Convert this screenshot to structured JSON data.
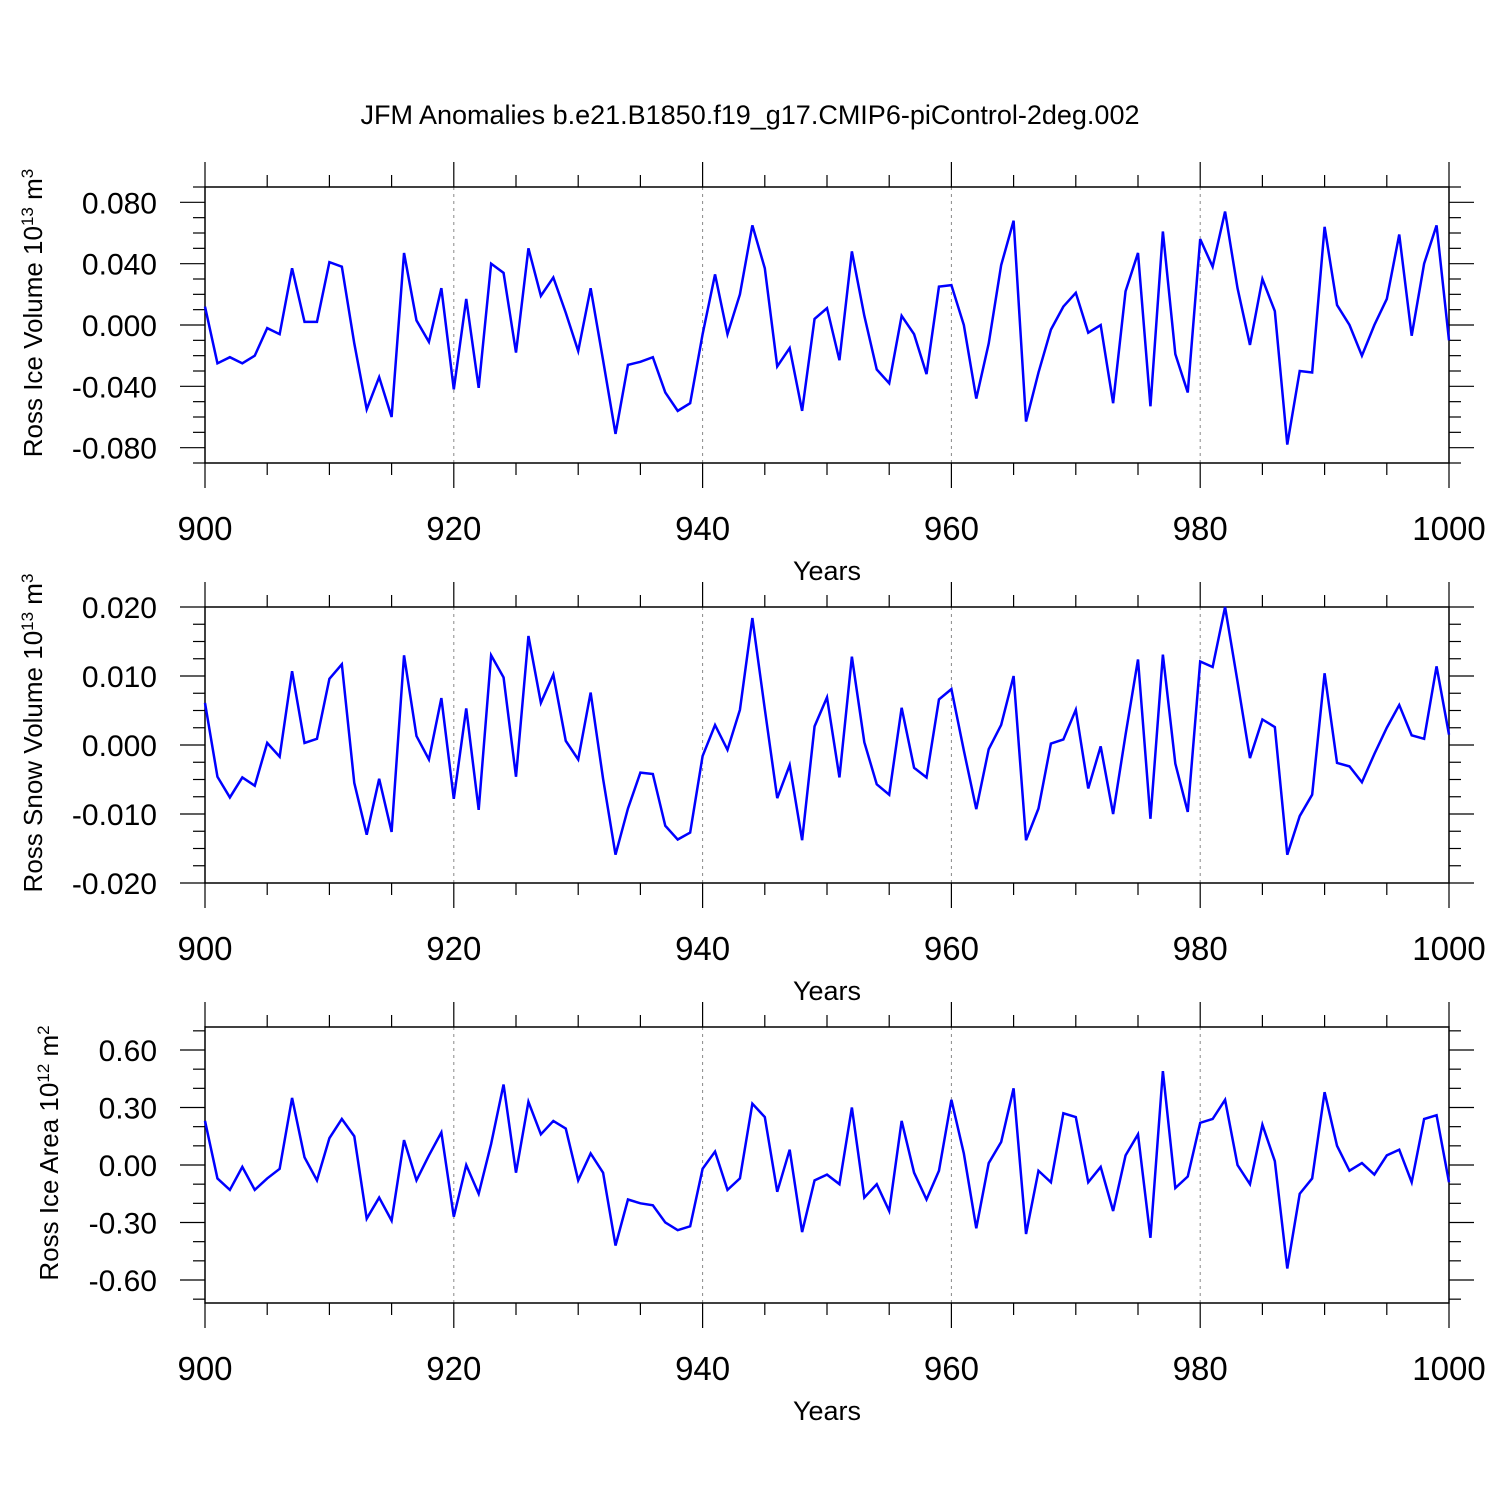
{
  "figure": {
    "title": "JFM Anomalies b.e21.B1850.f19_g17.CMIP6-piControl-2deg.002"
  },
  "colors": {
    "line": "#0000ff",
    "axis": "#000000",
    "grid": "#888888"
  },
  "chart_data": [
    {
      "type": "line",
      "name": "ross-ice-volume",
      "ylabel_main": "Ross Ice Volume 10",
      "ylabel_exp": "13",
      "ylabel_unit": " m",
      "ylabel_unit_exp": "3",
      "xlabel": "Years",
      "xlim": [
        900,
        1000
      ],
      "ylim": [
        -0.09,
        0.09
      ],
      "x_ticks": [
        900,
        920,
        940,
        960,
        980,
        1000
      ],
      "x_tick_labels": [
        "900",
        "920",
        "940",
        "960",
        "980",
        "1000"
      ],
      "y_ticks": [
        -0.08,
        -0.04,
        0.0,
        0.04,
        0.08
      ],
      "y_tick_labels": [
        "-0.080",
        "-0.040",
        "0.000",
        "0.040",
        "0.080"
      ],
      "y_minor_step": 0.01,
      "grid_x": [
        920,
        940,
        960,
        980
      ],
      "x_start": 900,
      "values": [
        0.012,
        -0.025,
        -0.021,
        -0.025,
        -0.02,
        -0.002,
        -0.006,
        0.037,
        0.002,
        0.002,
        0.041,
        0.038,
        -0.012,
        -0.055,
        -0.034,
        -0.06,
        0.047,
        0.003,
        -0.011,
        0.024,
        -0.042,
        0.017,
        -0.041,
        0.04,
        0.034,
        -0.018,
        0.05,
        0.019,
        0.031,
        0.008,
        -0.017,
        0.024,
        -0.023,
        -0.071,
        -0.026,
        -0.024,
        -0.021,
        -0.044,
        -0.056,
        -0.051,
        -0.006,
        0.033,
        -0.006,
        0.02,
        0.065,
        0.037,
        -0.027,
        -0.015,
        -0.056,
        0.004,
        0.011,
        -0.023,
        0.048,
        0.006,
        -0.029,
        -0.038,
        0.006,
        -0.006,
        -0.032,
        0.025,
        0.026,
        0.0,
        -0.048,
        -0.012,
        0.039,
        0.068,
        -0.063,
        -0.031,
        -0.003,
        0.012,
        0.021,
        -0.005,
        0.0,
        -0.051,
        0.022,
        0.047,
        -0.053,
        0.061,
        -0.019,
        -0.044,
        0.056,
        0.038,
        0.074,
        0.024,
        -0.013,
        0.03,
        0.009,
        -0.078,
        -0.03,
        -0.031,
        0.064,
        0.013,
        0.0,
        -0.02,
        0.0,
        0.017,
        0.059,
        -0.007,
        0.04,
        0.065,
        -0.01
      ]
    },
    {
      "type": "line",
      "name": "ross-snow-volume",
      "ylabel_main": "Ross Snow Volume 10",
      "ylabel_exp": "13",
      "ylabel_unit": " m",
      "ylabel_unit_exp": "3",
      "xlabel": "Years",
      "xlim": [
        900,
        1000
      ],
      "ylim": [
        -0.02,
        0.02
      ],
      "x_ticks": [
        900,
        920,
        940,
        960,
        980,
        1000
      ],
      "x_tick_labels": [
        "900",
        "920",
        "940",
        "960",
        "980",
        "1000"
      ],
      "y_ticks": [
        -0.02,
        -0.01,
        0.0,
        0.01,
        0.02
      ],
      "y_tick_labels": [
        "-0.020",
        "-0.010",
        "0.000",
        "0.010",
        "0.020"
      ],
      "y_minor_step": 0.0025,
      "grid_x": [
        920,
        940,
        960,
        980
      ],
      "x_start": 900,
      "values": [
        0.0061,
        -0.0046,
        -0.0076,
        -0.0047,
        -0.0059,
        0.0003,
        -0.0017,
        0.0107,
        0.0003,
        0.0009,
        0.0096,
        0.0117,
        -0.0055,
        -0.013,
        -0.0049,
        -0.0126,
        0.013,
        0.0013,
        -0.0021,
        0.0068,
        -0.0078,
        0.0053,
        -0.0094,
        0.013,
        0.0098,
        -0.0046,
        0.0158,
        0.0061,
        0.0102,
        0.0006,
        -0.0021,
        0.0076,
        -0.0049,
        -0.0159,
        -0.0092,
        -0.004,
        -0.0042,
        -0.0117,
        -0.0137,
        -0.0127,
        -0.0016,
        0.0029,
        -0.0007,
        0.0051,
        0.0184,
        0.0052,
        -0.0077,
        -0.0029,
        -0.0138,
        0.0027,
        0.0069,
        -0.0047,
        0.0128,
        0.0004,
        -0.0057,
        -0.0072,
        0.0054,
        -0.0033,
        -0.0047,
        0.0066,
        0.0081,
        -0.0008,
        -0.0093,
        -0.0006,
        0.0029,
        0.01,
        -0.0138,
        -0.0092,
        0.0002,
        0.0008,
        0.0051,
        -0.0063,
        -0.0002,
        -0.01,
        0.0015,
        0.0124,
        -0.0107,
        0.0131,
        -0.0027,
        -0.0097,
        0.0121,
        0.0113,
        0.02,
        0.0092,
        -0.0019,
        0.0037,
        0.0026,
        -0.0159,
        -0.0103,
        -0.0072,
        0.0104,
        -0.0026,
        -0.0031,
        -0.0054,
        -0.0013,
        0.0025,
        0.0058,
        0.0014,
        0.0009,
        0.0114,
        0.0015
      ]
    },
    {
      "type": "line",
      "name": "ross-ice-area",
      "ylabel_main": "Ross Ice Area 10",
      "ylabel_exp": "12",
      "ylabel_unit": " m",
      "ylabel_unit_exp": "2",
      "xlabel": "Years",
      "xlim": [
        900,
        1000
      ],
      "ylim": [
        -0.72,
        0.72
      ],
      "x_ticks": [
        900,
        920,
        940,
        960,
        980,
        1000
      ],
      "x_tick_labels": [
        "900",
        "920",
        "940",
        "960",
        "980",
        "1000"
      ],
      "y_ticks": [
        -0.6,
        -0.3,
        0.0,
        0.3,
        0.6
      ],
      "y_tick_labels": [
        "-0.60",
        "-0.30",
        "0.00",
        "0.30",
        "0.60"
      ],
      "y_minor_step": 0.1,
      "grid_x": [
        920,
        940,
        960,
        980
      ],
      "x_start": 900,
      "values": [
        0.23,
        -0.07,
        -0.13,
        -0.01,
        -0.13,
        -0.07,
        -0.02,
        0.35,
        0.04,
        -0.08,
        0.14,
        0.24,
        0.15,
        -0.28,
        -0.17,
        -0.29,
        0.13,
        -0.08,
        0.05,
        0.17,
        -0.27,
        0.0,
        -0.15,
        0.11,
        0.42,
        -0.04,
        0.33,
        0.16,
        0.23,
        0.19,
        -0.08,
        0.06,
        -0.04,
        -0.42,
        -0.18,
        -0.2,
        -0.21,
        -0.3,
        -0.34,
        -0.32,
        -0.02,
        0.07,
        -0.13,
        -0.07,
        0.32,
        0.25,
        -0.14,
        0.08,
        -0.35,
        -0.08,
        -0.05,
        -0.1,
        0.3,
        -0.17,
        -0.1,
        -0.24,
        0.23,
        -0.04,
        -0.18,
        -0.03,
        0.34,
        0.06,
        -0.33,
        0.01,
        0.12,
        0.4,
        -0.36,
        -0.03,
        -0.09,
        0.27,
        0.25,
        -0.09,
        -0.01,
        -0.24,
        0.05,
        0.16,
        -0.38,
        0.49,
        -0.12,
        -0.06,
        0.22,
        0.24,
        0.34,
        0.0,
        -0.1,
        0.21,
        0.02,
        -0.54,
        -0.15,
        -0.07,
        0.38,
        0.1,
        -0.03,
        0.01,
        -0.05,
        0.05,
        0.08,
        -0.09,
        0.24,
        0.26,
        -0.09
      ]
    }
  ]
}
